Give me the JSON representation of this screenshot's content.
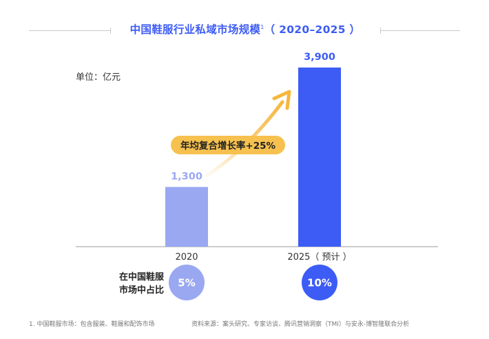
{
  "title": {
    "main": "中国鞋服行业私域市场规模",
    "superscript": "1",
    "years": "（ 2020–2025 ）"
  },
  "unit_label": "单位：亿元",
  "growth_annotation": "年均复合增长率+25%",
  "share": {
    "label_line1": "在中国鞋服",
    "label_line2": "市场中占比",
    "values": [
      "5%",
      "10%"
    ],
    "colors": [
      "#9aa8f2",
      "#3d5cf5"
    ]
  },
  "footnotes": {
    "note": "1. 中国鞋服市场：包含服装、鞋履和配饰市场",
    "source": "资料来源：案头研究、专家访谈、腾讯营销洞察（TMI）与安永-博智隆联合分析"
  },
  "colors": {
    "title": "#3d5cf5",
    "bar_2020": "#9aa8f2",
    "bar_2025": "#3d5cf5",
    "arrow": "#f6b73c",
    "badge": "#f6c14e"
  },
  "chart_data": {
    "type": "bar",
    "categories": [
      "2020",
      "2025（ 预计 ）"
    ],
    "values": [
      1300,
      3900
    ],
    "value_labels": [
      "1,300",
      "3,900"
    ],
    "ylim": [
      0,
      4500
    ],
    "grid": false,
    "annotation": "年均复合增长率+25%"
  }
}
